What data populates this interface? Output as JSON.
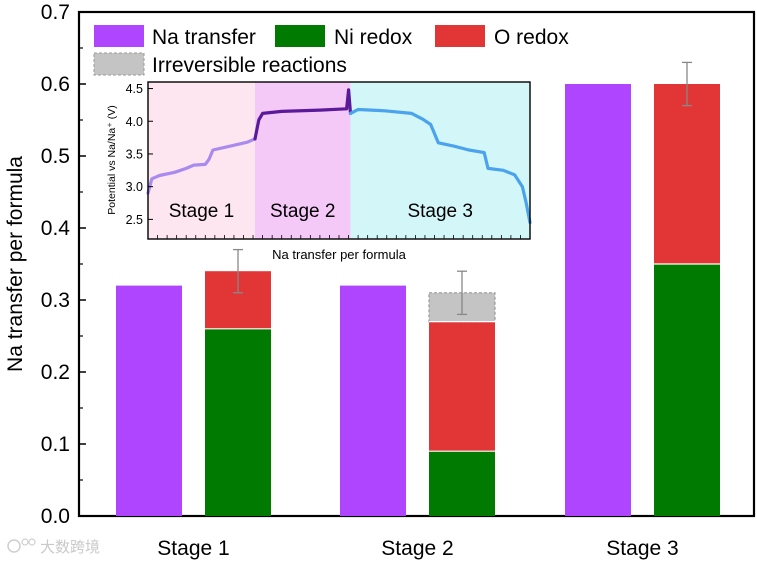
{
  "chart_data": {
    "type": "bar",
    "ylabel": "Na transfer per formula",
    "ylim": [
      0.0,
      0.7
    ],
    "yticks": [
      "0.0",
      "0.1",
      "0.2",
      "0.3",
      "0.4",
      "0.5",
      "0.6",
      "0.7"
    ],
    "yticks_values": [
      0.0,
      0.1,
      0.2,
      0.3,
      0.4,
      0.5,
      0.6,
      0.7
    ],
    "categories": [
      "Stage 1",
      "Stage 2",
      "Stage 3"
    ],
    "series": [
      {
        "name": "Na transfer",
        "color": "#b045ff",
        "values": [
          0.32,
          0.32,
          0.6
        ]
      },
      {
        "name": "Ni redox",
        "color": "#007a00",
        "values": [
          0.26,
          0.09,
          0.35
        ]
      },
      {
        "name": "O redox",
        "color": "#e23636",
        "values": [
          0.08,
          0.18,
          0.25
        ]
      },
      {
        "name": "Irreversible reactions",
        "color": "#c4c4c4",
        "values": [
          0.0,
          0.04,
          0.0
        ]
      }
    ],
    "error_bars": [
      {
        "category": "Stage 1",
        "center": 0.34,
        "error": 0.03
      },
      {
        "category": "Stage 2",
        "center": 0.31,
        "error": 0.03
      },
      {
        "category": "Stage 3",
        "center": 0.6,
        "error": 0.03
      }
    ],
    "legend": {
      "position": "top-left",
      "entries": [
        "Na transfer",
        "Ni redox",
        "O redox",
        "Irreversible reactions"
      ]
    },
    "inset": {
      "type": "line",
      "xlabel": "Na transfer per formula",
      "ylabel": "Potential vs Na/Na⁺ (V)",
      "ylim": [
        2.2,
        4.6
      ],
      "yticks": [
        "2.5",
        "3.0",
        "3.5",
        "4.0",
        "4.5"
      ],
      "yticks_values": [
        2.5,
        3.0,
        3.5,
        4.0,
        4.5
      ],
      "xlim": [
        0,
        1
      ],
      "regions": [
        {
          "label": "Stage 1",
          "x_start": 0.0,
          "x_end": 0.28,
          "fill": "#fde6f0",
          "line_color": "#a98aee"
        },
        {
          "label": "Stage 2",
          "x_start": 0.28,
          "x_end": 0.53,
          "fill": "#f5c9f7",
          "line_color": "#5b1a9a"
        },
        {
          "label": "Stage 3",
          "x_start": 0.53,
          "x_end": 1.0,
          "fill": "#d3f7f9",
          "line_color": "#4aa3ec"
        }
      ],
      "curve": [
        [
          0.0,
          2.9
        ],
        [
          0.01,
          3.12
        ],
        [
          0.03,
          3.17
        ],
        [
          0.07,
          3.22
        ],
        [
          0.1,
          3.28
        ],
        [
          0.12,
          3.33
        ],
        [
          0.15,
          3.34
        ],
        [
          0.16,
          3.42
        ],
        [
          0.17,
          3.56
        ],
        [
          0.2,
          3.6
        ],
        [
          0.23,
          3.64
        ],
        [
          0.26,
          3.68
        ],
        [
          0.28,
          3.73
        ],
        [
          0.29,
          4.02
        ],
        [
          0.3,
          4.12
        ],
        [
          0.35,
          4.15
        ],
        [
          0.45,
          4.17
        ],
        [
          0.52,
          4.19
        ],
        [
          0.525,
          4.48
        ],
        [
          0.53,
          4.12
        ],
        [
          0.55,
          4.18
        ],
        [
          0.62,
          4.16
        ],
        [
          0.69,
          4.12
        ],
        [
          0.72,
          4.03
        ],
        [
          0.74,
          3.95
        ],
        [
          0.76,
          3.67
        ],
        [
          0.8,
          3.62
        ],
        [
          0.84,
          3.56
        ],
        [
          0.88,
          3.52
        ],
        [
          0.89,
          3.28
        ],
        [
          0.93,
          3.25
        ],
        [
          0.96,
          3.18
        ],
        [
          0.98,
          3.0
        ],
        [
          0.99,
          2.75
        ],
        [
          1.0,
          2.45
        ]
      ]
    }
  },
  "watermark": "大数跨境"
}
